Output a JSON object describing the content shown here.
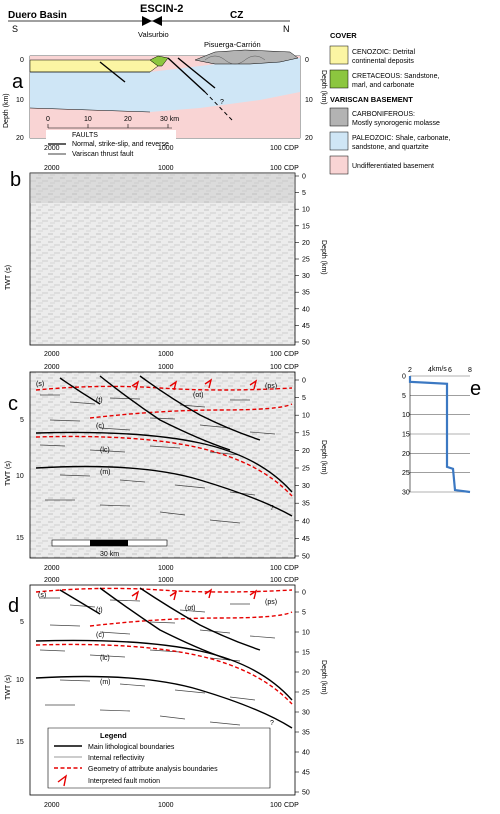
{
  "header": {
    "left_region": "Duero Basin",
    "profile": "ESCIN-2",
    "right_region": "CZ",
    "south": "S",
    "north": "N",
    "place1": "Valsurbio",
    "place2": "Pisuerga-Carrión"
  },
  "panel_labels": {
    "a": "a",
    "b": "b",
    "c": "c",
    "d": "d",
    "e": "e"
  },
  "panel_a": {
    "scale_ticks": [
      "0",
      "10",
      "20",
      "30 km"
    ],
    "faults_title": "FAULTS",
    "fault_types": "Normal, strike-slip, and reverse",
    "thrust": "Variscan thrust fault",
    "depth_ticks": [
      "0",
      "10",
      "20"
    ],
    "depth_left": "Depth (km)",
    "depth_right": "Depth (km)",
    "question": "?"
  },
  "cdp": {
    "ticks": [
      "2000",
      "1000",
      "100"
    ],
    "label": "CDP"
  },
  "axes": {
    "twt": "TWT (s)",
    "depth": "Depth (km)",
    "twt_ticks": [
      "5",
      "10",
      "15"
    ],
    "depth_ticks": [
      "0",
      "5",
      "10",
      "15",
      "20",
      "25",
      "30",
      "35",
      "40",
      "45",
      "50"
    ]
  },
  "interpretation": {
    "s": "(s)",
    "t": "(t)",
    "ot": "(ot)",
    "ps": "(ps)",
    "c": "(c)",
    "lc": "(lc)",
    "m": "(m)",
    "q": "?"
  },
  "scale_bar": "30 km",
  "key": {
    "cover": "COVER",
    "cenozoic": "CENOZOIC: Detrital",
    "cenozoic2": "continental deposits",
    "cretaceous": "CRETACEOUS: Sandstone,",
    "cretaceous2": "marl, and carbonate",
    "variscan": "VARISCAN BASEMENT",
    "carboniferous": "CARBONIFEROUS:",
    "carboniferous2": "Mostly synorogenic molasse",
    "paleozoic": "PALEOZOIC: Shale, carbonate,",
    "paleozoic2": "sandstone, and quartzite",
    "undiff": "Undifferentiated basement",
    "colors": {
      "cenozoic": "#fbf5a3",
      "cretaceous": "#8cc63f",
      "carboniferous": "#b3b3b3",
      "paleozoic": "#cfe6f6",
      "undiff": "#f9d4d4"
    }
  },
  "legend": {
    "title": "Legend",
    "items": [
      "Main lithological boundaries",
      "Internal reflectivity",
      "Geometry of attribute analysis boundaries",
      "Interpreted fault motion"
    ]
  },
  "velocity": {
    "unit": "km/s",
    "x_ticks": [
      "2",
      "4",
      "6",
      "8"
    ],
    "y_ticks": [
      "0",
      "5",
      "10",
      "15",
      "20",
      "25",
      "30"
    ],
    "profile": [
      [
        2.0,
        0
      ],
      [
        2.0,
        1.5
      ],
      [
        5.7,
        2.0
      ],
      [
        5.7,
        23.5
      ],
      [
        6.3,
        24
      ],
      [
        6.5,
        29.5
      ],
      [
        8.0,
        30
      ]
    ],
    "xlim": [
      2,
      8
    ],
    "ylim": [
      0,
      30
    ]
  }
}
